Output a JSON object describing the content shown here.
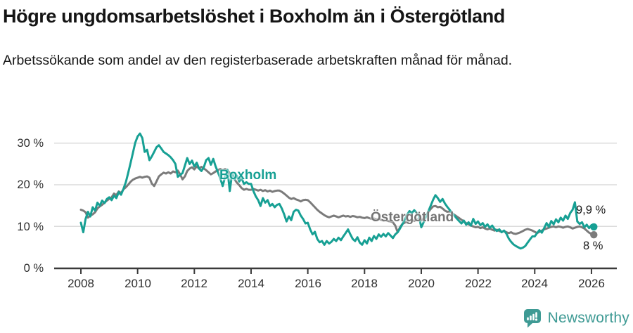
{
  "header": {
    "title": "Högre ungdomsarbetslöshet i Boxholm än i Östergötland",
    "subtitle": "Arbetssökande som andel av den registerbaserade arbetskraften månad för månad."
  },
  "chart_data": {
    "type": "line",
    "unit": "%",
    "x_start_year": 2008,
    "x_step_months": 1,
    "x_range": [
      2007.05,
      2026.9
    ],
    "y_range": [
      0,
      34
    ],
    "grid": "horizontal",
    "grid_color": "#DBDBDB",
    "axis_color": "#3A3A3A",
    "x_tick_years": [
      2008,
      2010,
      2012,
      2014,
      2016,
      2018,
      2020,
      2022,
      2024,
      2026
    ],
    "x_tick_labels": [
      "2008",
      "2010",
      "2012",
      "2014",
      "2016",
      "2018",
      "2020",
      "2022",
      "2024",
      "2026"
    ],
    "y_tick_values": [
      0,
      10,
      20,
      30
    ],
    "y_tick_labels": [
      "0 %",
      "10 %",
      "20 %",
      "30 %"
    ],
    "legend_position": "inline-labels",
    "series": [
      {
        "name": "Boxholm",
        "color": "#17A094",
        "end_label": "9,9 %",
        "values": [
          10.9,
          8.6,
          11.8,
          13.5,
          12.4,
          14.6,
          13.8,
          15.7,
          15.0,
          16.2,
          15.6,
          16.6,
          17.0,
          16.3,
          17.4,
          16.8,
          18.2,
          17.6,
          19.0,
          20.6,
          22.8,
          25.2,
          27.6,
          30.1,
          31.6,
          32.3,
          31.2,
          27.9,
          28.4,
          25.9,
          26.8,
          27.9,
          29.0,
          29.5,
          28.7,
          27.9,
          27.5,
          27.1,
          26.6,
          25.9,
          25.0,
          21.9,
          22.4,
          22.8,
          24.6,
          26.4,
          25.0,
          25.8,
          24.4,
          25.3,
          23.9,
          23.3,
          24.2,
          25.9,
          26.4,
          24.8,
          26.2,
          24.4,
          23.0,
          21.5,
          19.7,
          21.9,
          23.6,
          18.5,
          22.8,
          21.3,
          22.2,
          20.8,
          21.6,
          20.2,
          20.6,
          20.2,
          20.2,
          18.5,
          17.2,
          16.3,
          14.9,
          16.8,
          15.7,
          16.3,
          14.9,
          15.4,
          14.6,
          15.2,
          15.4,
          14.3,
          12.9,
          11.2,
          12.4,
          11.5,
          13.5,
          14.0,
          13.8,
          12.6,
          11.8,
          10.7,
          10.9,
          9.3,
          8.1,
          8.7,
          7.0,
          6.2,
          6.5,
          5.6,
          6.5,
          5.9,
          6.3,
          7.0,
          6.5,
          7.3,
          6.7,
          7.6,
          8.4,
          9.3,
          8.1,
          7.0,
          6.5,
          7.4,
          6.1,
          5.6,
          6.7,
          5.9,
          7.3,
          6.5,
          7.7,
          7.0,
          8.1,
          7.5,
          8.2,
          7.6,
          8.4,
          7.8,
          7.2,
          8.1,
          8.6,
          9.5,
          10.5,
          11.6,
          12.8,
          13.7,
          13.2,
          13.9,
          13.3,
          12.5,
          9.8,
          11.0,
          12.4,
          13.6,
          15.0,
          16.4,
          17.5,
          16.8,
          15.9,
          16.6,
          15.5,
          14.7,
          14.0,
          13.2,
          12.6,
          11.9,
          11.3,
          10.7,
          11.4,
          10.4,
          11.0,
          10.2,
          11.8,
          10.6,
          11.2,
          10.3,
          10.8,
          9.9,
          10.5,
          9.7,
          10.2,
          9.4,
          8.9,
          9.3,
          8.6,
          9.0,
          8.3,
          7.1,
          6.3,
          5.7,
          5.3,
          5.0,
          4.7,
          4.9,
          5.3,
          6.1,
          6.9,
          7.6,
          7.6,
          8.4,
          9.1,
          8.5,
          9.6,
          10.8,
          9.9,
          11.3,
          10.5,
          11.7,
          11.0,
          12.1,
          11.4,
          12.6,
          11.8,
          13.2,
          14.0,
          15.8,
          11.2,
          10.6,
          11.0,
          9.8,
          10.4,
          9.6,
          10.3,
          9.9
        ]
      },
      {
        "name": "Östergötland",
        "color": "#7B7B7B",
        "end_label": "8 %",
        "values": [
          14.0,
          13.8,
          13.4,
          12.1,
          12.6,
          12.9,
          13.4,
          14.3,
          14.8,
          15.2,
          15.7,
          16.2,
          16.6,
          17.0,
          17.9,
          17.5,
          18.4,
          18.0,
          18.9,
          19.4,
          20.0,
          20.7,
          21.2,
          21.5,
          21.7,
          21.9,
          21.7,
          21.9,
          22.0,
          21.7,
          20.3,
          19.7,
          20.8,
          22.0,
          22.5,
          22.9,
          22.7,
          23.0,
          22.7,
          23.2,
          23.0,
          23.4,
          22.5,
          21.3,
          22.0,
          23.3,
          23.9,
          24.2,
          23.7,
          24.4,
          23.9,
          24.3,
          23.9,
          23.5,
          23.0,
          22.5,
          22.8,
          23.2,
          23.5,
          23.8,
          23.5,
          23.8,
          23.4,
          22.8,
          22.0,
          21.3,
          20.5,
          19.9,
          19.2,
          18.8,
          19.0,
          18.8,
          18.8,
          19.0,
          18.8,
          18.6,
          18.8,
          18.5,
          18.7,
          18.4,
          18.6,
          18.3,
          18.5,
          18.6,
          18.6,
          18.3,
          17.9,
          17.4,
          16.9,
          16.6,
          16.8,
          16.5,
          16.3,
          16.0,
          16.3,
          16.4,
          16.3,
          15.8,
          15.2,
          14.6,
          14.0,
          13.5,
          13.1,
          12.7,
          12.4,
          12.2,
          12.4,
          12.6,
          12.4,
          12.2,
          12.4,
          12.6,
          12.4,
          12.5,
          12.3,
          12.5,
          12.4,
          12.2,
          12.3,
          12.1,
          12.0,
          12.2,
          12.0,
          11.8,
          11.9,
          11.7,
          11.8,
          11.6,
          11.4,
          11.5,
          11.3,
          11.2,
          11.0,
          10.2,
          8.6,
          9.8,
          10.6,
          10.9,
          11.1,
          11.4,
          11.6,
          11.3,
          11.6,
          11.8,
          11.5,
          11.9,
          12.6,
          13.4,
          14.2,
          14.8,
          14.9,
          14.6,
          14.7,
          14.3,
          13.8,
          13.5,
          13.6,
          13.2,
          12.8,
          12.4,
          12.0,
          11.6,
          11.2,
          10.8,
          10.5,
          10.2,
          10.0,
          9.8,
          9.9,
          9.6,
          9.8,
          9.5,
          9.3,
          9.5,
          9.2,
          9.0,
          9.2,
          8.9,
          8.7,
          8.9,
          8.6,
          8.4,
          8.6,
          8.3,
          8.2,
          8.4,
          8.6,
          8.9,
          9.2,
          9.4,
          9.2,
          9.0,
          8.7,
          8.4,
          8.7,
          9.0,
          9.3,
          9.5,
          9.7,
          9.9,
          10.0,
          9.8,
          10.0,
          9.9,
          9.7,
          9.9,
          10.0,
          9.8,
          9.5,
          9.7,
          9.9,
          10.0,
          9.8,
          9.5,
          9.0,
          8.5,
          8.2,
          8.0
        ]
      }
    ]
  },
  "footer": {
    "brand": "Newsworthy",
    "brand_color": "#3E9A94",
    "logo_icon": "speech-bubble-bar-chart-icon"
  }
}
